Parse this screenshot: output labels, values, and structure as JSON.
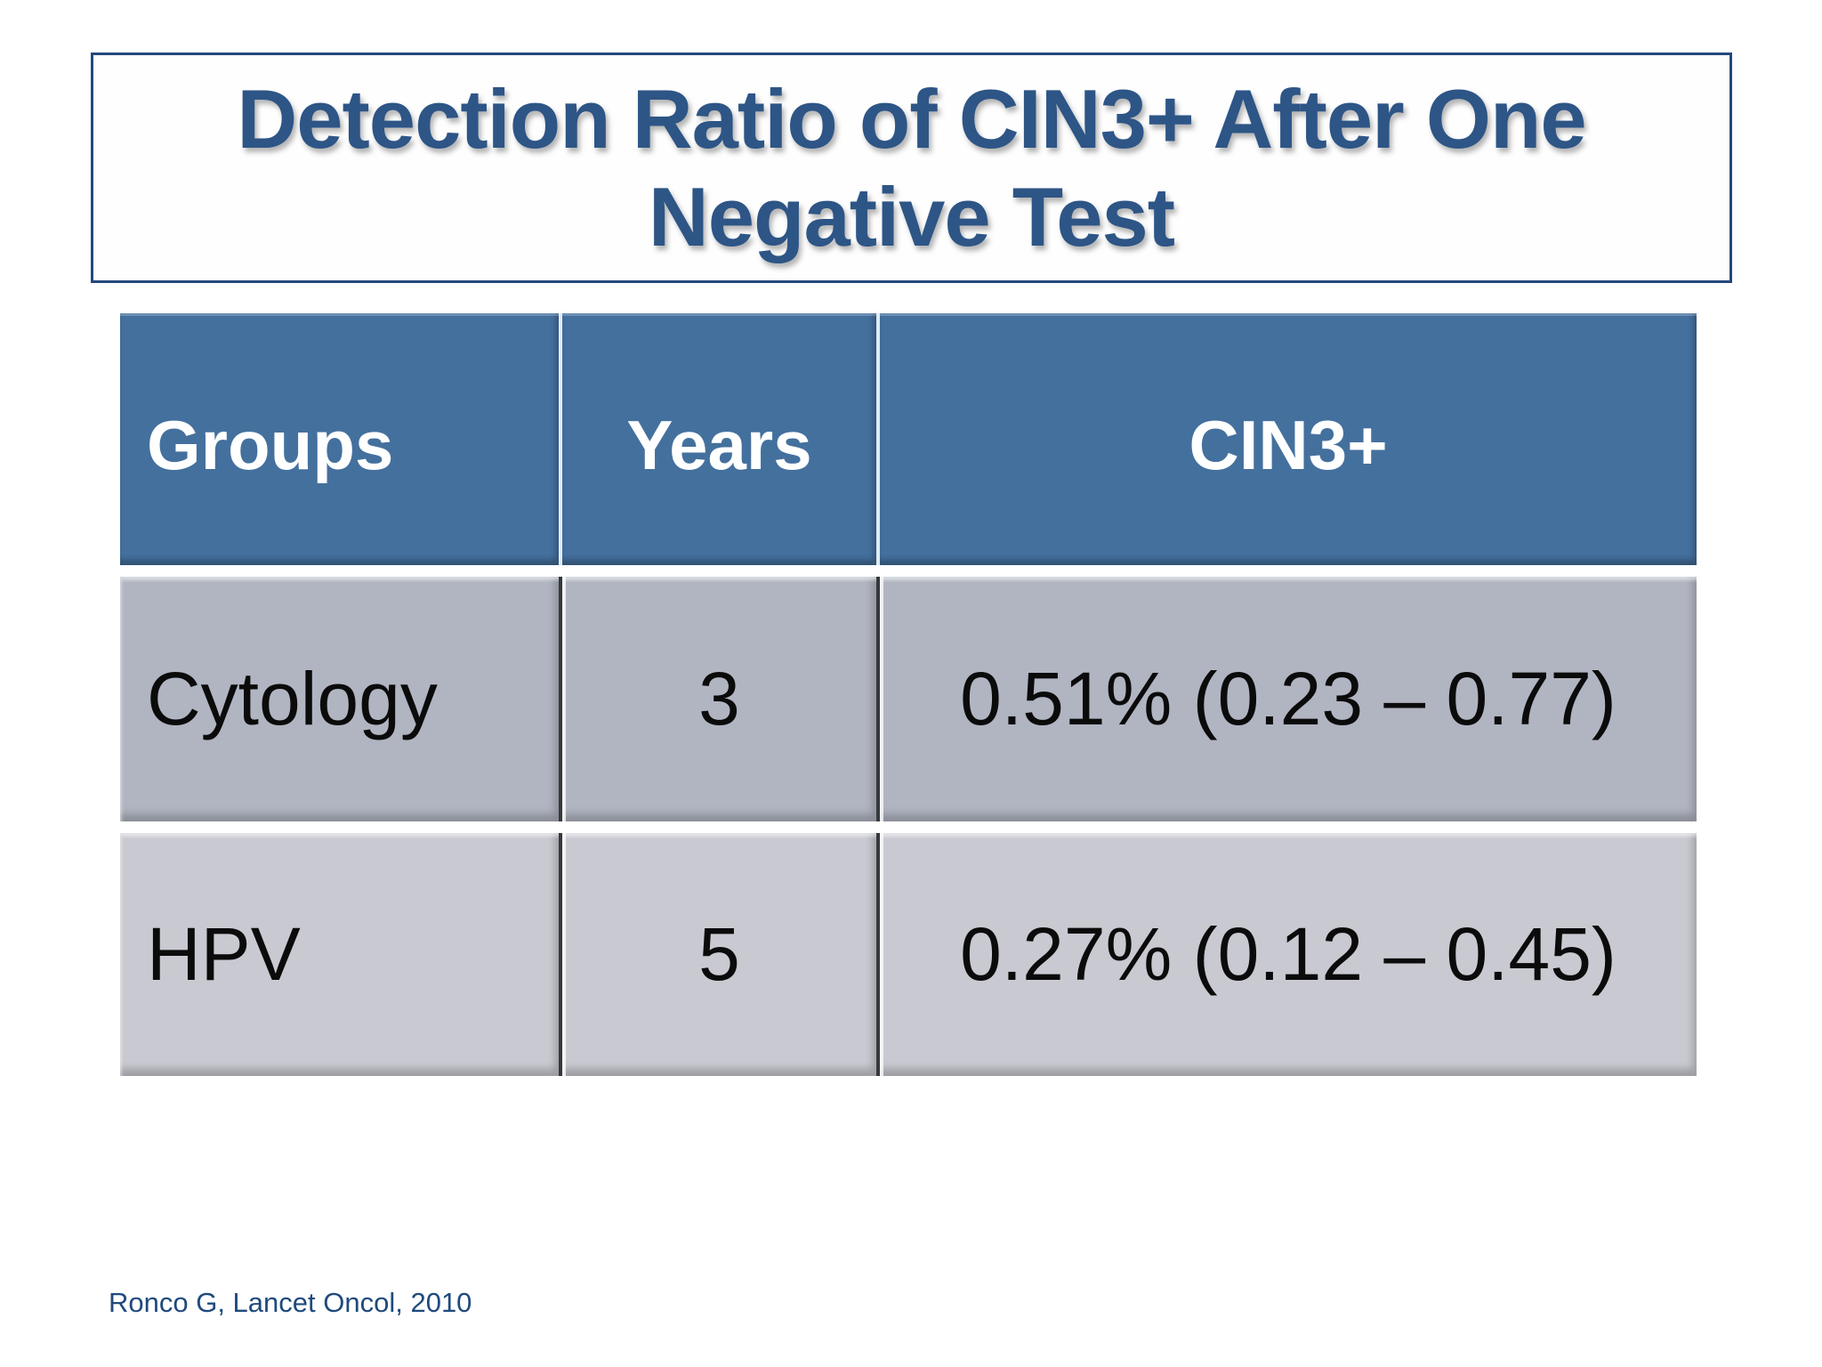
{
  "slide": {
    "title": "Detection Ratio of CIN3+ After One Negative Test",
    "citation": "Ronco G, Lancet Oncol, 2010"
  },
  "table": {
    "columns": [
      "Groups",
      "Years",
      "CIN3+"
    ],
    "rows": [
      {
        "group": "Cytology",
        "years": "3",
        "cin3": "0.51% (0.23 – 0.77)"
      },
      {
        "group": "HPV",
        "years": "5",
        "cin3": "0.27% (0.12 – 0.45)"
      }
    ]
  },
  "colors": {
    "title_text": "#2D5586",
    "title_border": "#24487C",
    "header_bg": "#44709E",
    "header_text": "#FFFFFF",
    "row1_bg": "#B1B5C1",
    "row2_bg": "#C9C9D1",
    "body_text": "#0B0B0B",
    "citation_text": "#1F4A7D"
  }
}
